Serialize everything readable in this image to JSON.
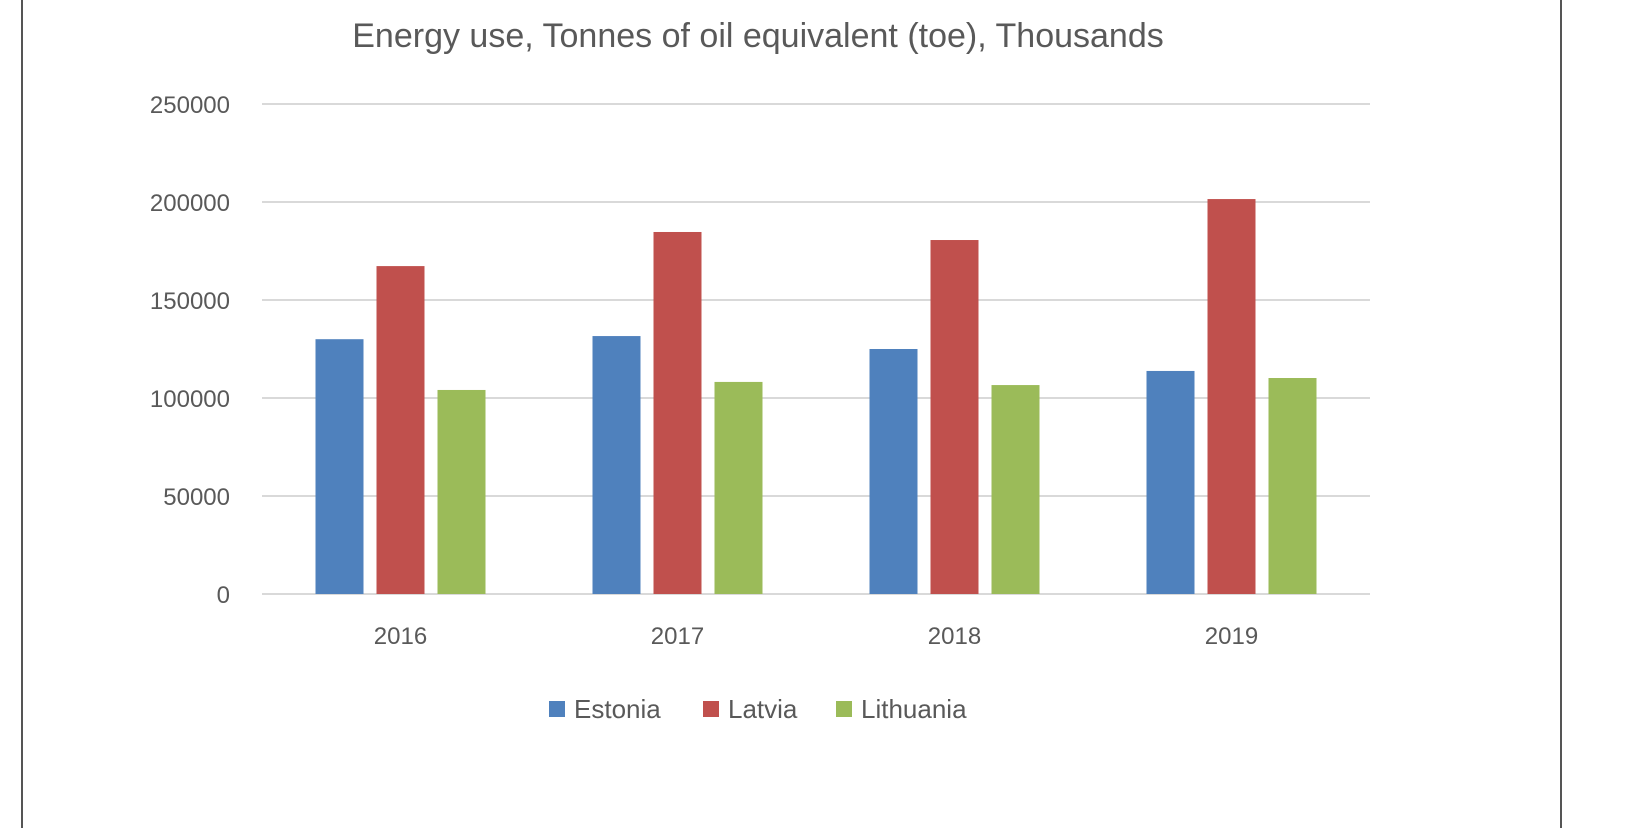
{
  "chart_data": {
    "type": "bar",
    "title": "Energy use, Tonnes of oil equivalent (toe), Thousands",
    "xlabel": "",
    "ylabel": "",
    "categories": [
      "2016",
      "2017",
      "2018",
      "2019"
    ],
    "series": [
      {
        "name": "Estonia",
        "color": "#4F81BD",
        "values": [
          130000,
          131600,
          125000,
          113800
        ]
      },
      {
        "name": "Latvia",
        "color": "#C0504D",
        "values": [
          167300,
          184700,
          180600,
          201500
        ]
      },
      {
        "name": "Lithuania",
        "color": "#9BBB59",
        "values": [
          104100,
          108200,
          106600,
          110200
        ]
      }
    ],
    "ylim": [
      0,
      250000
    ],
    "yticks": [
      "0",
      "50000",
      "100000",
      "150000",
      "200000",
      "250000"
    ],
    "grid": true,
    "legend": "bottom"
  }
}
